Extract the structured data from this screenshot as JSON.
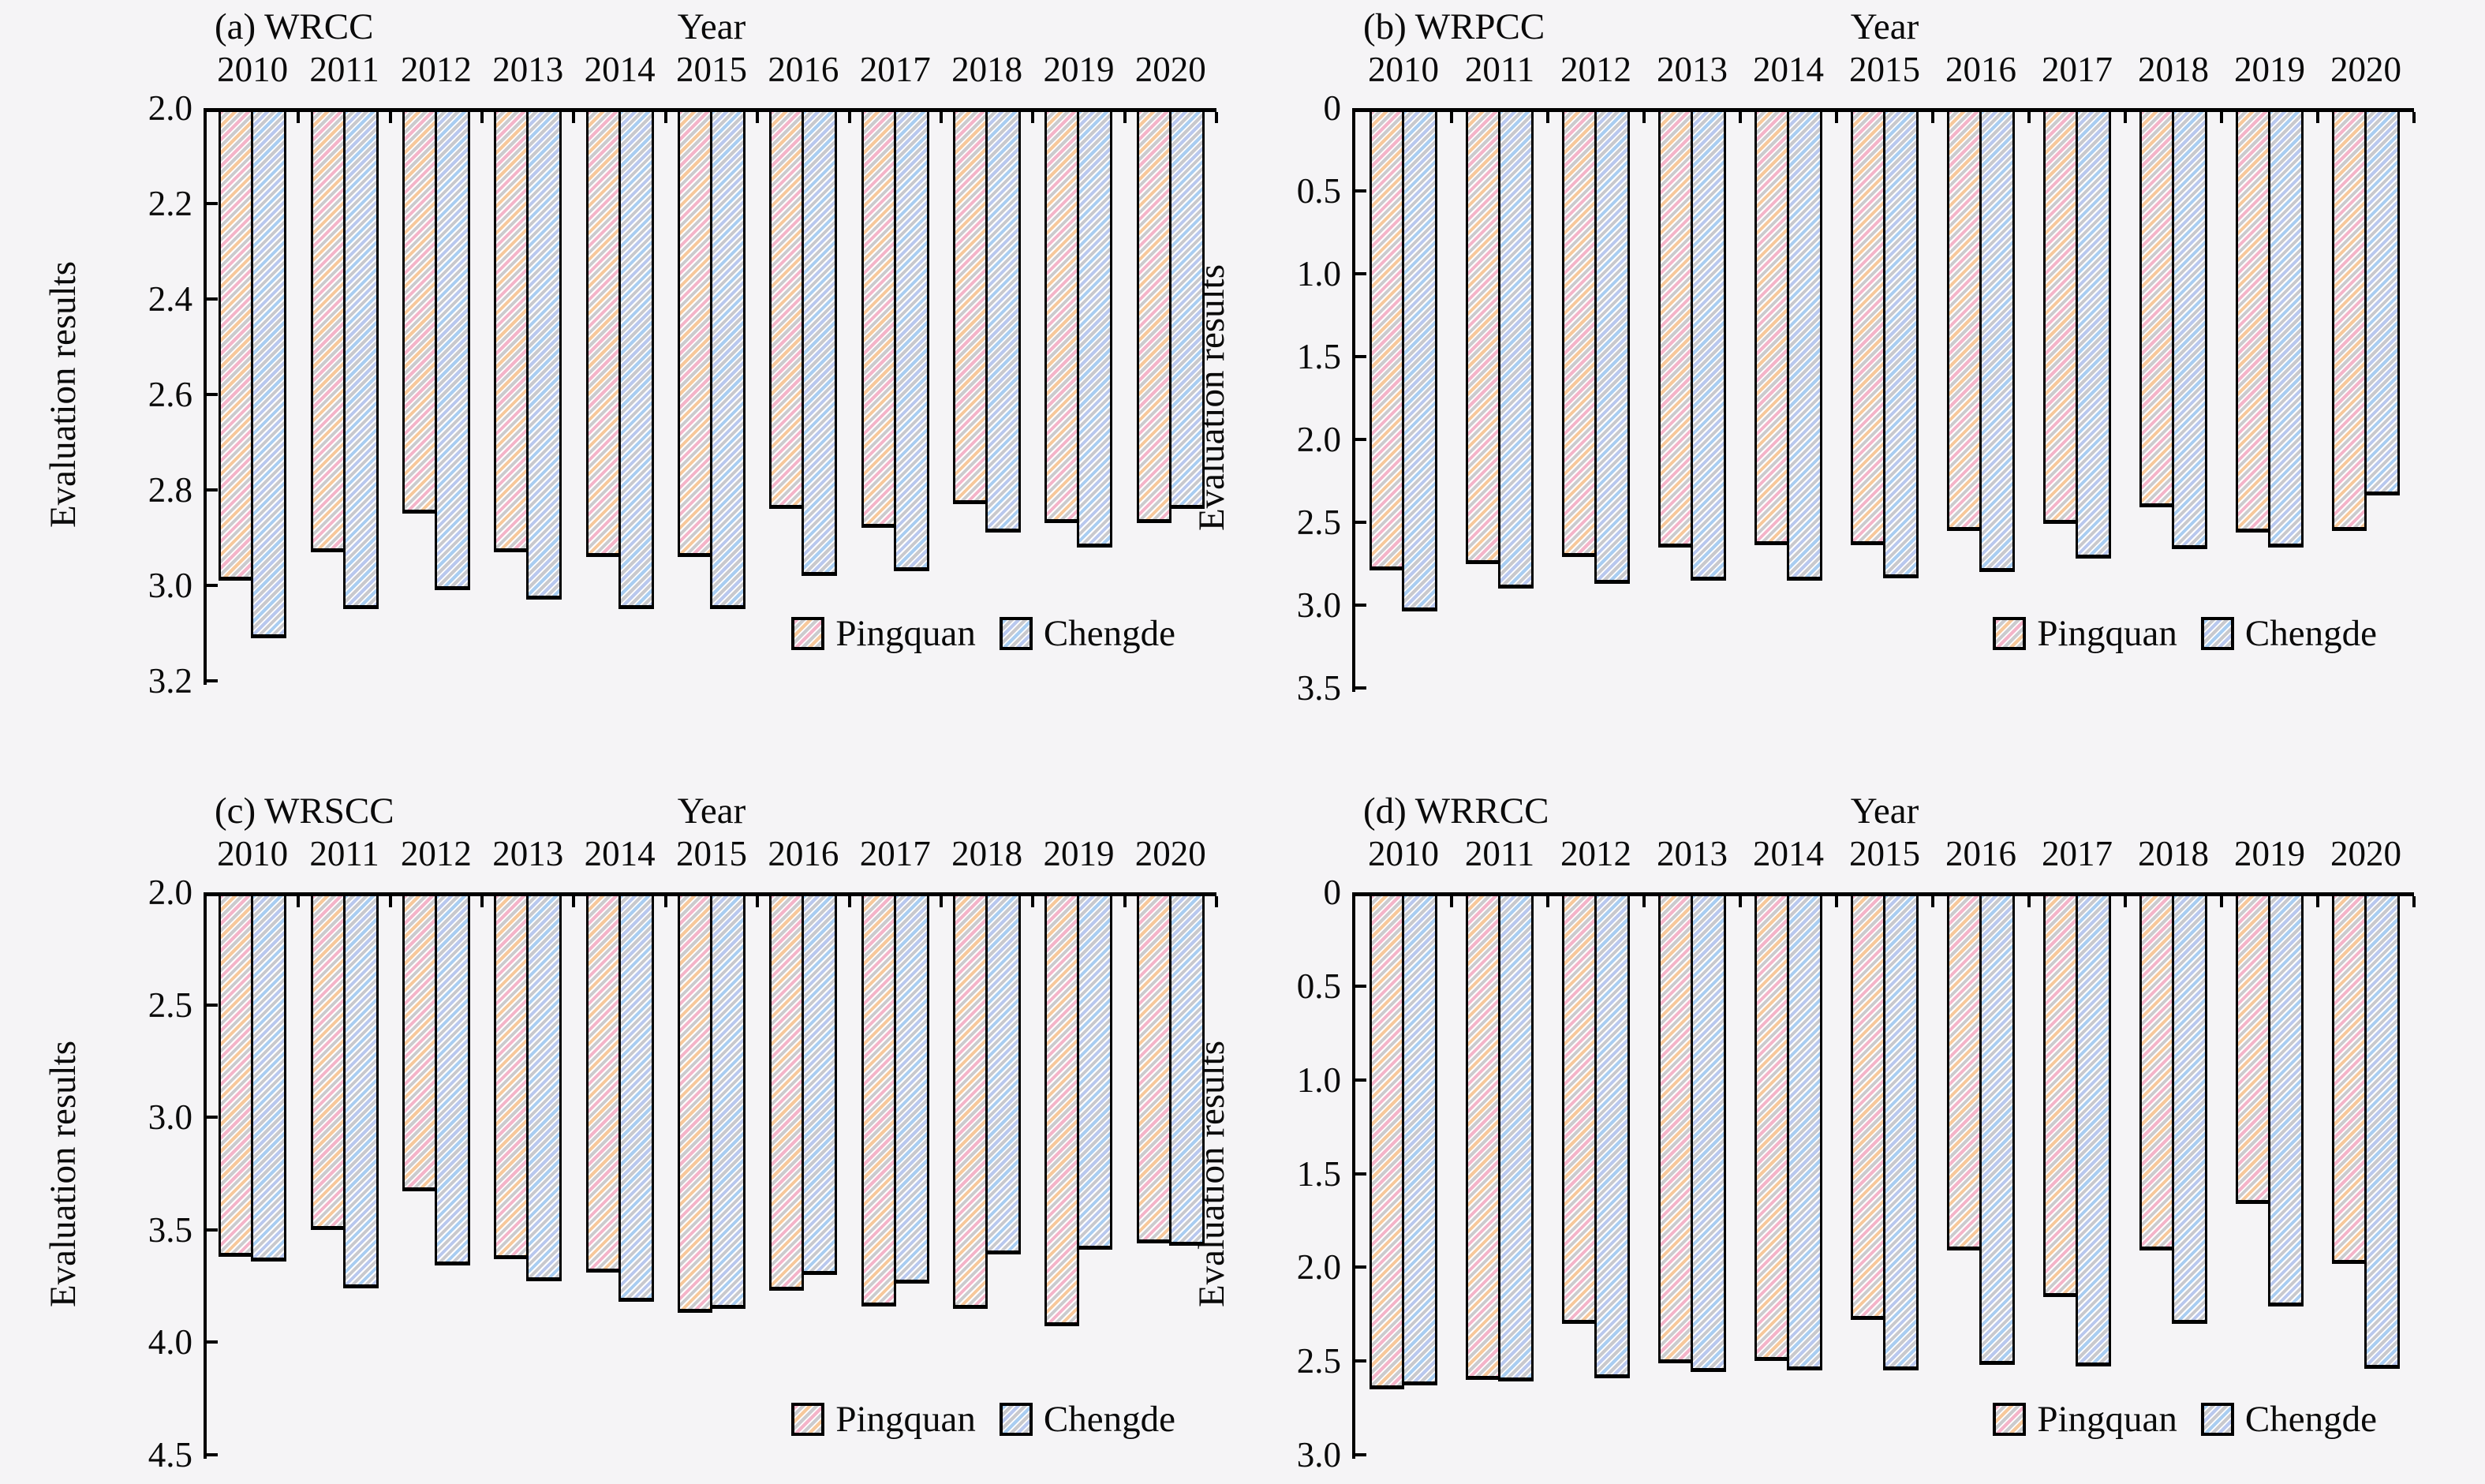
{
  "figure": {
    "background": "#f5f4f6",
    "text_color": "#0a0a0a",
    "axis_color": "#000000",
    "series_colors": {
      "pingquan_pink": "#f4b4c9",
      "pingquan_orange": "#f7c89b",
      "chengde_blue": "#a9cdf1",
      "hatch_gray": "#c9c9cd",
      "bar_face": "#ffffff"
    }
  },
  "legend": {
    "pingquan_label": "Pingquan",
    "chengde_label": "Chengde",
    "position": "bottom-right-inside"
  },
  "chart_data": [
    {
      "type": "bar",
      "panel": "a",
      "title": "(a) WRCC",
      "xlabel": "Year",
      "ylabel": "Evaluation results",
      "orientation": "bars-hang-from-top-axis",
      "y_axis_inverted": true,
      "grid": false,
      "categories": [
        "2010",
        "2011",
        "2012",
        "2013",
        "2014",
        "2015",
        "2016",
        "2017",
        "2018",
        "2019",
        "2020"
      ],
      "ylim": [
        2.0,
        3.2
      ],
      "yticks": [
        2.0,
        2.2,
        2.4,
        2.6,
        2.8,
        3.0,
        3.2
      ],
      "ytick_labels": [
        "2.0",
        "2.2",
        "2.4",
        "2.6",
        "2.8",
        "3.0",
        "3.2"
      ],
      "series": [
        {
          "name": "Pingquan",
          "values": [
            2.99,
            2.93,
            2.85,
            2.93,
            2.94,
            2.94,
            2.84,
            2.88,
            2.83,
            2.87,
            2.87
          ]
        },
        {
          "name": "Chengde",
          "values": [
            3.11,
            3.05,
            3.01,
            3.03,
            3.05,
            3.05,
            2.98,
            2.97,
            2.89,
            2.92,
            2.84
          ]
        }
      ]
    },
    {
      "type": "bar",
      "panel": "b",
      "title": "(b) WRPCC",
      "xlabel": "Year",
      "ylabel": "Evaluation results",
      "orientation": "bars-hang-from-top-axis",
      "y_axis_inverted": true,
      "grid": false,
      "categories": [
        "2010",
        "2011",
        "2012",
        "2013",
        "2014",
        "2015",
        "2016",
        "2017",
        "2018",
        "2019",
        "2020"
      ],
      "ylim": [
        0,
        3.5
      ],
      "yticks": [
        0,
        0.5,
        1.0,
        1.5,
        2.0,
        2.5,
        3.0,
        3.5
      ],
      "ytick_labels": [
        "0",
        "0.5",
        "1.0",
        "1.5",
        "2.0",
        "2.5",
        "3.0",
        "3.5"
      ],
      "series": [
        {
          "name": "Pingquan",
          "values": [
            2.79,
            2.75,
            2.71,
            2.65,
            2.64,
            2.64,
            2.55,
            2.51,
            2.41,
            2.56,
            2.55
          ]
        },
        {
          "name": "Chengde",
          "values": [
            3.04,
            2.9,
            2.87,
            2.85,
            2.85,
            2.84,
            2.8,
            2.72,
            2.66,
            2.65,
            2.34
          ]
        }
      ]
    },
    {
      "type": "bar",
      "panel": "c",
      "title": "(c) WRSCC",
      "xlabel": "Year",
      "ylabel": "Evaluation results",
      "orientation": "bars-hang-from-top-axis",
      "y_axis_inverted": true,
      "grid": false,
      "categories": [
        "2010",
        "2011",
        "2012",
        "2013",
        "2014",
        "2015",
        "2016",
        "2017",
        "2018",
        "2019",
        "2020"
      ],
      "ylim": [
        2.0,
        4.5
      ],
      "yticks": [
        2.0,
        2.5,
        3.0,
        3.5,
        4.0,
        4.5
      ],
      "ytick_labels": [
        "2.0",
        "2.5",
        "3.0",
        "3.5",
        "4.0",
        "4.5"
      ],
      "series": [
        {
          "name": "Pingquan",
          "values": [
            3.62,
            3.5,
            3.33,
            3.63,
            3.69,
            3.87,
            3.77,
            3.84,
            3.85,
            3.93,
            3.56
          ]
        },
        {
          "name": "Chengde",
          "values": [
            3.64,
            3.76,
            3.66,
            3.73,
            3.82,
            3.85,
            3.7,
            3.74,
            3.61,
            3.59,
            3.57
          ]
        }
      ]
    },
    {
      "type": "bar",
      "panel": "d",
      "title": "(d) WRRCC",
      "xlabel": "Year",
      "ylabel": "Evaluation results",
      "orientation": "bars-hang-from-top-axis",
      "y_axis_inverted": true,
      "grid": false,
      "categories": [
        "2010",
        "2011",
        "2012",
        "2013",
        "2014",
        "2015",
        "2016",
        "2017",
        "2018",
        "2019",
        "2020"
      ],
      "ylim": [
        0,
        3.0
      ],
      "yticks": [
        0,
        0.5,
        1.0,
        1.5,
        2.0,
        2.5,
        3.0
      ],
      "ytick_labels": [
        "0",
        "0.5",
        "1.0",
        "1.5",
        "2.0",
        "2.5",
        "3.0"
      ],
      "series": [
        {
          "name": "Pingquan",
          "values": [
            2.65,
            2.6,
            2.3,
            2.51,
            2.5,
            2.28,
            1.91,
            2.16,
            1.91,
            1.66,
            1.98
          ]
        },
        {
          "name": "Chengde",
          "values": [
            2.63,
            2.61,
            2.59,
            2.56,
            2.55,
            2.55,
            2.52,
            2.53,
            2.3,
            2.21,
            2.54
          ]
        }
      ]
    }
  ]
}
